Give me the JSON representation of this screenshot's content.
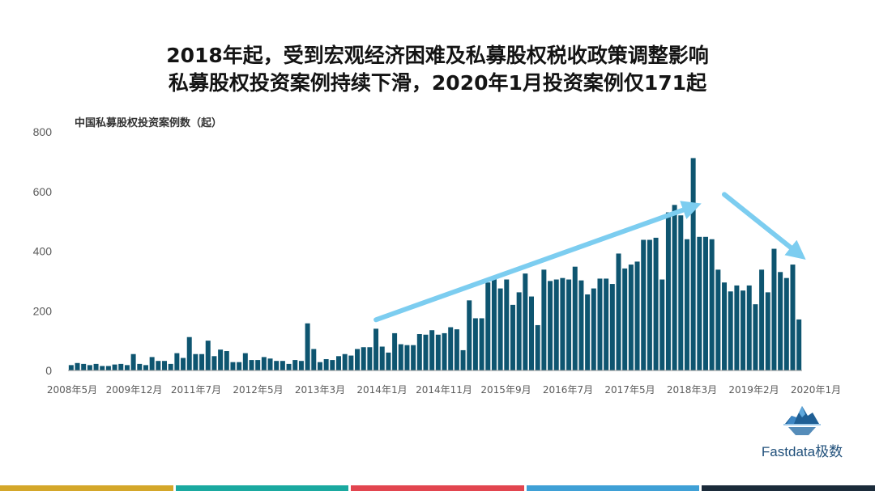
{
  "title": {
    "line1": "2018年起，受到宏观经济困难及私募股权税收政策调整影响",
    "line2": "私募股权投资案例持续下滑，2020年1月投资案例仅171起"
  },
  "brand": {
    "name": "Fastdata极数",
    "logo_icon": "iceberg-icon"
  },
  "colors": {
    "bar": "#0e5570",
    "arrow": "#7ccdf0",
    "axis_text": "#5a5a5a",
    "bottom_band": [
      "#d4a72a",
      "#1aa9a0",
      "#e2454f",
      "#3fa0d6",
      "#1b2b3a"
    ]
  },
  "chart_data": {
    "type": "bar",
    "title": "中国私募股权投资案例数（起）",
    "ylim": [
      0,
      800
    ],
    "yticks": [
      "0",
      "200",
      "400",
      "600",
      "800"
    ],
    "grid": false,
    "xticks": [
      "2008年5月",
      "2009年12月",
      "2011年7月",
      "2012年5月",
      "2013年3月",
      "2014年1月",
      "2014年11月",
      "2015年9月",
      "2016年7月",
      "2017年5月",
      "2018年3月",
      "2019年2月",
      "2020年1月"
    ],
    "values": [
      18,
      25,
      22,
      18,
      22,
      15,
      15,
      20,
      22,
      18,
      55,
      22,
      18,
      45,
      32,
      32,
      22,
      58,
      42,
      112,
      55,
      55,
      100,
      48,
      70,
      65,
      28,
      28,
      58,
      35,
      35,
      45,
      40,
      32,
      32,
      22,
      35,
      32,
      158,
      72,
      28,
      38,
      35,
      48,
      55,
      50,
      72,
      78,
      78,
      140,
      80,
      60,
      125,
      88,
      85,
      85,
      122,
      120,
      135,
      120,
      125,
      145,
      138,
      68,
      235,
      175,
      175,
      295,
      310,
      275,
      305,
      220,
      262,
      325,
      248,
      152,
      338,
      300,
      305,
      310,
      305,
      348,
      302,
      255,
      275,
      308,
      308,
      290,
      392,
      342,
      355,
      365,
      438,
      438,
      445,
      305,
      530,
      555,
      520,
      440,
      712,
      448,
      448,
      440,
      338,
      295,
      265,
      285,
      268,
      285,
      222,
      338,
      262,
      408,
      330,
      310,
      355,
      171
    ],
    "arrows": [
      {
        "from": [
          49,
          170
        ],
        "to": [
          100,
          550
        ]
      },
      {
        "from": [
          105,
          590
        ],
        "to": [
          117,
          390
        ]
      }
    ]
  }
}
